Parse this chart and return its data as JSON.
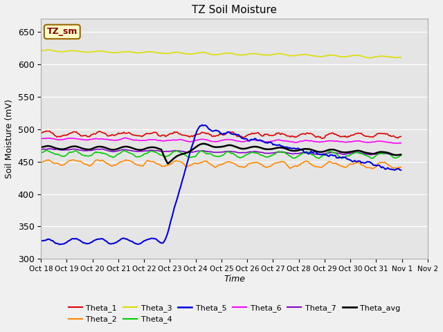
{
  "title": "TZ Soil Moisture",
  "xlabel": "Time",
  "ylabel": "Soil Moisture (mV)",
  "ylim": [
    300,
    670
  ],
  "yticks": [
    300,
    350,
    400,
    450,
    500,
    550,
    600,
    650
  ],
  "figsize": [
    6.4,
    4.8
  ],
  "dpi": 100,
  "fig_facecolor": "#f0f0f0",
  "ax_facecolor": "#e5e5e5",
  "series": {
    "Theta_1": {
      "color": "#dd0000",
      "lw": 1.2
    },
    "Theta_2": {
      "color": "#ff8800",
      "lw": 1.2
    },
    "Theta_3": {
      "color": "#dddd00",
      "lw": 1.2
    },
    "Theta_4": {
      "color": "#00cc00",
      "lw": 1.2
    },
    "Theta_5": {
      "color": "#0000dd",
      "lw": 1.5
    },
    "Theta_6": {
      "color": "#ff00ff",
      "lw": 1.2
    },
    "Theta_7": {
      "color": "#8800cc",
      "lw": 1.2
    },
    "Theta_avg": {
      "color": "#000000",
      "lw": 1.8
    }
  },
  "n_points": 336,
  "xtick_labels": [
    "Oct 18",
    "Oct 19",
    "Oct 20",
    "Oct 21",
    "Oct 22",
    "Oct 23",
    "Oct 24",
    "Oct 25",
    "Oct 26",
    "Oct 27",
    "Oct 28",
    "Oct 29",
    "Oct 30",
    "Oct 31",
    "Nov 1",
    "Nov 2"
  ],
  "xtick_positions": [
    0,
    24,
    48,
    72,
    96,
    120,
    144,
    168,
    192,
    216,
    240,
    264,
    288,
    312,
    336,
    360
  ],
  "xlim": [
    0,
    360
  ],
  "tzlabel_text": "TZ_sm",
  "tzlabel_facecolor": "#ffffcc",
  "tzlabel_edgecolor": "#996600",
  "tzlabel_textcolor": "#880000"
}
